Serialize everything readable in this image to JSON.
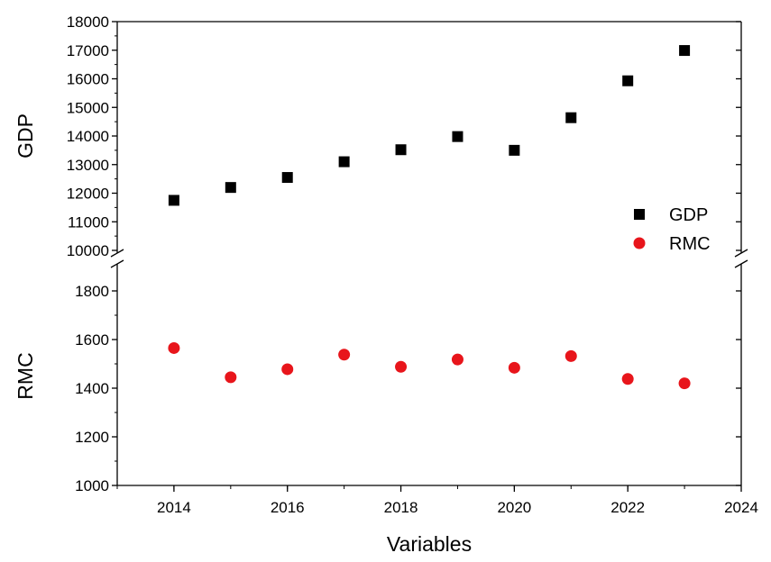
{
  "chart_data": {
    "type": "scatter",
    "xlabel": "Variables",
    "x_ticks": [
      "2014",
      "2016",
      "2018",
      "2020",
      "2022",
      "2024"
    ],
    "xlim": [
      2013,
      2024
    ],
    "axis_break": true,
    "panels": [
      {
        "ylabel": "GDP",
        "ylim": [
          10000,
          18000
        ],
        "y_ticks": [
          "10000",
          "11000",
          "12000",
          "13000",
          "14000",
          "15000",
          "16000",
          "17000",
          "18000"
        ]
      },
      {
        "ylabel": "RMC",
        "ylim": [
          1000,
          1900
        ],
        "y_ticks": [
          "1000",
          "1200",
          "1400",
          "1600",
          "1800"
        ]
      }
    ],
    "series": [
      {
        "name": "GDP",
        "marker": "square",
        "color": "#000000",
        "panel": 0,
        "x": [
          2014,
          2015,
          2016,
          2017,
          2018,
          2019,
          2020,
          2021,
          2022,
          2023
        ],
        "values": [
          11750,
          12200,
          12550,
          13100,
          13520,
          13980,
          13500,
          14640,
          15930,
          16990
        ]
      },
      {
        "name": "RMC",
        "marker": "circle",
        "color": "#e8151b",
        "panel": 1,
        "x": [
          2014,
          2015,
          2016,
          2017,
          2018,
          2019,
          2020,
          2021,
          2022,
          2023
        ],
        "values": [
          1565,
          1445,
          1478,
          1538,
          1488,
          1518,
          1484,
          1532,
          1438,
          1420
        ]
      }
    ],
    "legend_position": "right",
    "grid": false
  }
}
